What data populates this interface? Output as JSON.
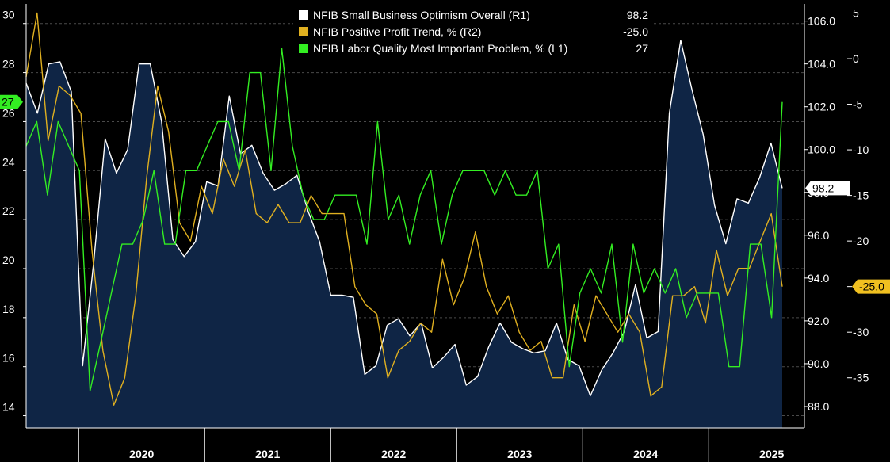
{
  "chart_data": {
    "type": "line",
    "x_start": "2019-08",
    "x_end": "2025-08",
    "year_labels": [
      "2020",
      "2021",
      "2022",
      "2023",
      "2024",
      "2025"
    ],
    "legend_placement": "top-center",
    "grid": "horizontal-dashed",
    "axes": {
      "left": {
        "ticks": [
          14,
          16,
          18,
          20,
          22,
          24,
          26,
          28,
          30
        ],
        "range": [
          13.5,
          30.8
        ],
        "series": "L1"
      },
      "right1": {
        "ticks": [
          "88.0",
          "90.0",
          "92.0",
          "94.0",
          "96.0",
          "98.0",
          "100.0",
          "102.0",
          "104.0",
          "106.0"
        ],
        "range": [
          87.0,
          106.8
        ],
        "series": "R1"
      },
      "right2": {
        "ticks": [
          -35,
          -30,
          -25,
          -20,
          -15,
          -10,
          -5,
          0,
          5
        ],
        "range": [
          -40.5,
          6.0
        ],
        "series": "R2"
      }
    },
    "series": [
      {
        "name": "NFIB Small Business Optimism Overall  (R1)",
        "last": "98.2",
        "axis": "right1",
        "color": "#ffffff",
        "fill": "#0f2545",
        "values": [
          103.1,
          101.7,
          104.0,
          104.1,
          102.7,
          89.9,
          94.8,
          100.5,
          98.9,
          100.0,
          104.0,
          104.0,
          101.3,
          95.8,
          95.0,
          95.7,
          98.5,
          98.3,
          102.5,
          99.8,
          100.2,
          98.9,
          98.1,
          98.4,
          98.8,
          97.1,
          95.7,
          93.2,
          93.2,
          93.1,
          89.5,
          89.9,
          91.8,
          92.1,
          91.3,
          91.9,
          89.8,
          90.3,
          90.9,
          89.0,
          89.4,
          90.8,
          91.9,
          91.0,
          90.7,
          90.5,
          90.6,
          91.9,
          90.2,
          89.9,
          88.5,
          89.7,
          90.5,
          91.5,
          93.7,
          91.2,
          91.5,
          101.7,
          105.1,
          102.8,
          100.7,
          97.4,
          95.6,
          97.7,
          97.5,
          98.7,
          100.3,
          98.2
        ]
      },
      {
        "name": "NFIB Positive Profit Trend, % (R2)",
        "last": "-25.0",
        "axis": "right2",
        "color": "#e0b020",
        "values": [
          -2,
          5,
          -9,
          -3,
          -4,
          -6,
          -21,
          -32,
          -38,
          -35,
          -26,
          -13,
          -3,
          -8,
          -18,
          -20,
          -14,
          -17,
          -11,
          -14,
          -10,
          -17,
          -18,
          -16,
          -18,
          -18,
          -15,
          -17,
          -17,
          -17,
          -25,
          -27,
          -28,
          -35,
          -32,
          -31,
          -29,
          -30,
          -22,
          -27,
          -24,
          -19,
          -25,
          -28,
          -26,
          -30,
          -32,
          -31,
          -35,
          -35,
          -27,
          -31,
          -26,
          -28,
          -30,
          -28,
          -30,
          -37,
          -36,
          -26,
          -26,
          -25,
          -29,
          -21,
          -26,
          -23,
          -23,
          -20,
          -17,
          -25
        ]
      },
      {
        "name": "NFIB Labor Quality Most Important Problem, % (L1)",
        "last": "27",
        "axis": "left",
        "color": "#33ee22",
        "values": [
          25,
          26,
          23,
          26,
          25,
          24,
          15,
          17,
          19,
          21,
          21,
          22,
          24,
          21,
          21,
          24,
          24,
          25,
          26,
          26,
          24,
          28,
          28,
          24,
          29,
          25,
          23,
          22,
          22,
          23,
          23,
          23,
          21,
          26,
          22,
          23,
          21,
          23,
          24,
          21,
          23,
          24,
          24,
          24,
          23,
          24,
          23,
          23,
          24,
          20,
          21,
          16,
          19,
          20,
          19,
          21,
          17,
          21,
          19,
          20,
          19,
          20,
          18,
          19,
          19,
          19,
          16,
          16,
          21,
          21,
          18,
          26.8
        ]
      }
    ]
  }
}
